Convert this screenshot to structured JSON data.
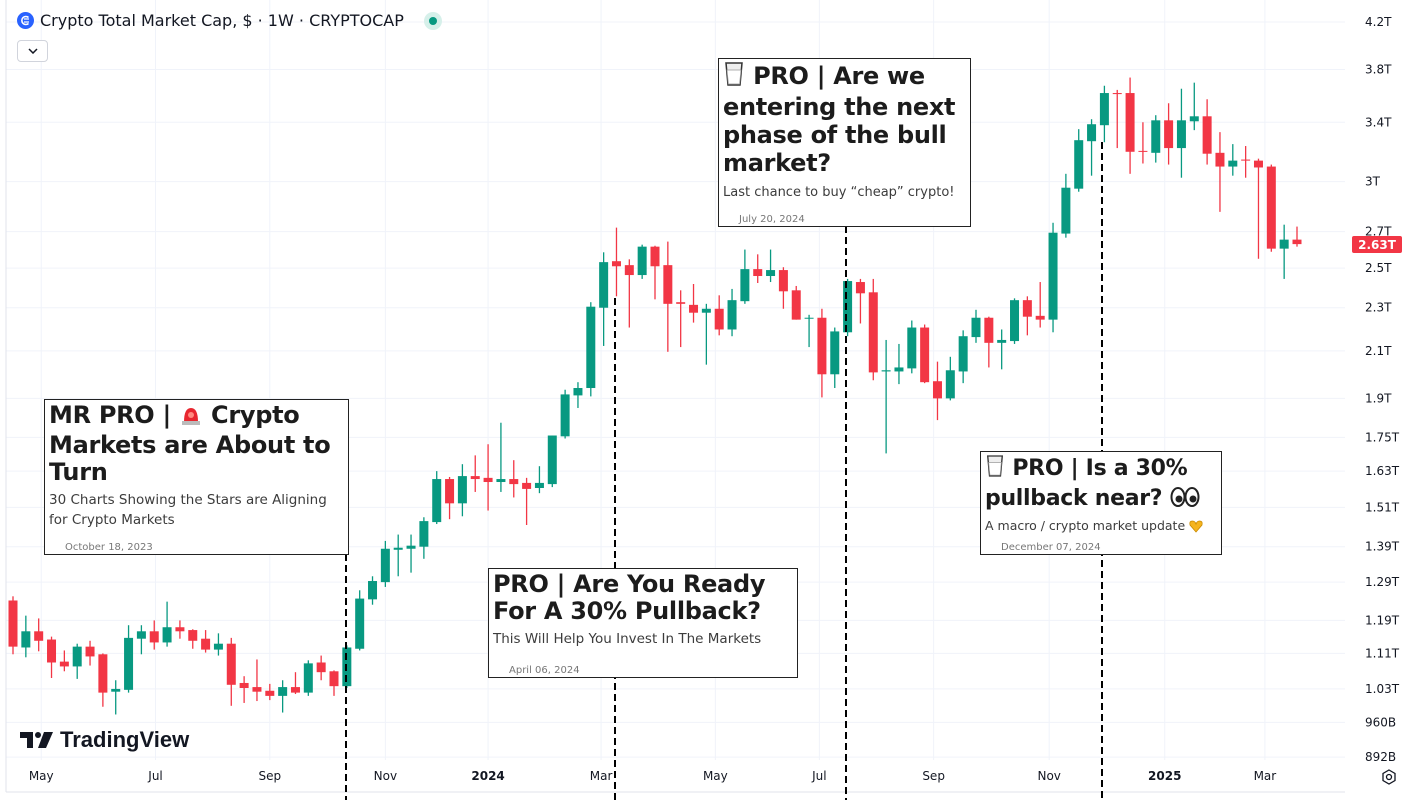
{
  "header": {
    "title": "Crypto Total Market Cap, $ · 1W · CRYPTOCAP",
    "symbol_icon": "cryptocap-icon",
    "status_icon": "market-open-dot",
    "collapse_icon": "chevron-down-icon"
  },
  "watermark": {
    "text": "TradingView"
  },
  "colors": {
    "up": "#089981",
    "down": "#f23645",
    "grid": "#f0f3fa",
    "axis_text": "#131722"
  },
  "last_price_label": "2.63T",
  "annotations": [
    {
      "title_lines": [
        "MR PRO | ",
        "Crypto",
        "Markets are About to",
        "Turn"
      ],
      "icon": "police-light-icon",
      "subtitle_lines": [
        "30 Charts Showing the Stars are Aligning",
        "for Crypto Markets"
      ],
      "date": "October 18, 2023"
    },
    {
      "title_lines": [
        "PRO | Are You Ready",
        "For A 30% Pullback?"
      ],
      "subtitle_lines": [
        "This Will Help You Invest In The Markets"
      ],
      "date": "April 06, 2024"
    },
    {
      "title_lines": [
        "PRO | Are we",
        "entering the next",
        "phase of the bull",
        "market?"
      ],
      "icon": "milk-glass-icon",
      "subtitle_lines": [
        "Last chance to buy “cheap” crypto!"
      ],
      "date": "July 20, 2024"
    },
    {
      "title_lines": [
        "PRO | Is a 30%",
        "pullback near?"
      ],
      "icon": "milk-glass-icon",
      "icon2": "eyes-icon",
      "icon3": "heart-hands-icon",
      "subtitle_lines": [
        "A macro / crypto market update"
      ],
      "date": "December 07, 2024"
    }
  ],
  "chart_data": {
    "type": "candlestick",
    "title": "Crypto Total Market Cap, $ · 1W · CRYPTOCAP",
    "interval": "1W",
    "x_start": "2023-04-17",
    "y_scale": "log",
    "ylim": [
      0.88,
      4.3
    ],
    "unit": "T",
    "grid": true,
    "y_ticks": [
      {
        "v": 4.2,
        "label": "4.2T"
      },
      {
        "v": 3.8,
        "label": "3.8T"
      },
      {
        "v": 3.4,
        "label": "3.4T"
      },
      {
        "v": 3.0,
        "label": "3T"
      },
      {
        "v": 2.7,
        "label": "2.7T"
      },
      {
        "v": 2.5,
        "label": "2.5T"
      },
      {
        "v": 2.3,
        "label": "2.3T"
      },
      {
        "v": 2.1,
        "label": "2.1T"
      },
      {
        "v": 1.9,
        "label": "1.9T"
      },
      {
        "v": 1.75,
        "label": "1.75T"
      },
      {
        "v": 1.63,
        "label": "1.63T"
      },
      {
        "v": 1.51,
        "label": "1.51T"
      },
      {
        "v": 1.39,
        "label": "1.39T"
      },
      {
        "v": 1.29,
        "label": "1.29T"
      },
      {
        "v": 1.19,
        "label": "1.19T"
      },
      {
        "v": 1.11,
        "label": "1.11T"
      },
      {
        "v": 1.03,
        "label": "1.03T"
      },
      {
        "v": 0.96,
        "label": "960B"
      },
      {
        "v": 0.892,
        "label": "892B"
      }
    ],
    "x_ticks": [
      {
        "week": 2.2,
        "label": "May"
      },
      {
        "week": 11.1,
        "label": "Jul"
      },
      {
        "week": 20.0,
        "label": "Sep"
      },
      {
        "week": 29.0,
        "label": "Nov"
      },
      {
        "week": 37.0,
        "label": "2024",
        "bold": true
      },
      {
        "week": 45.8,
        "label": "Mar"
      },
      {
        "week": 54.7,
        "label": "May"
      },
      {
        "week": 62.8,
        "label": "Jul"
      },
      {
        "week": 71.7,
        "label": "Sep"
      },
      {
        "week": 80.7,
        "label": "Nov"
      },
      {
        "week": 89.7,
        "label": "2025",
        "bold": true
      },
      {
        "week": 97.5,
        "label": "Mar"
      }
    ],
    "ohlc": [
      [
        1.241,
        1.252,
        1.108,
        1.126
      ],
      [
        1.124,
        1.202,
        1.101,
        1.163
      ],
      [
        1.163,
        1.195,
        1.115,
        1.14
      ],
      [
        1.143,
        1.15,
        1.054,
        1.089
      ],
      [
        1.091,
        1.117,
        1.069,
        1.08
      ],
      [
        1.08,
        1.133,
        1.052,
        1.126
      ],
      [
        1.126,
        1.14,
        1.082,
        1.103
      ],
      [
        1.108,
        1.11,
        0.992,
        1.022
      ],
      [
        1.024,
        1.049,
        0.976,
        1.03
      ],
      [
        1.028,
        1.178,
        1.022,
        1.147
      ],
      [
        1.145,
        1.178,
        1.108,
        1.163
      ],
      [
        1.163,
        1.19,
        1.119,
        1.136
      ],
      [
        1.136,
        1.238,
        1.126,
        1.173
      ],
      [
        1.173,
        1.19,
        1.145,
        1.163
      ],
      [
        1.166,
        1.168,
        1.121,
        1.14
      ],
      [
        1.145,
        1.166,
        1.112,
        1.119
      ],
      [
        1.119,
        1.158,
        1.105,
        1.133
      ],
      [
        1.133,
        1.147,
        0.994,
        1.039
      ],
      [
        1.043,
        1.058,
        1.0,
        1.032
      ],
      [
        1.034,
        1.096,
        1.004,
        1.024
      ],
      [
        1.026,
        1.041,
        1.006,
        1.015
      ],
      [
        1.015,
        1.049,
        0.98,
        1.034
      ],
      [
        1.034,
        1.067,
        1.019,
        1.022
      ],
      [
        1.022,
        1.094,
        1.015,
        1.087
      ],
      [
        1.089,
        1.105,
        1.049,
        1.067
      ],
      [
        1.069,
        1.071,
        1.015,
        1.036
      ],
      [
        1.036,
        1.129,
        1.032,
        1.124
      ],
      [
        1.121,
        1.268,
        1.117,
        1.246
      ],
      [
        1.244,
        1.306,
        1.23,
        1.293
      ],
      [
        1.29,
        1.407,
        1.277,
        1.384
      ],
      [
        1.381,
        1.426,
        1.306,
        1.387
      ],
      [
        1.384,
        1.426,
        1.316,
        1.393
      ],
      [
        1.39,
        1.479,
        1.355,
        1.467
      ],
      [
        1.464,
        1.63,
        1.458,
        1.603
      ],
      [
        1.603,
        1.61,
        1.473,
        1.523
      ],
      [
        1.523,
        1.654,
        1.482,
        1.613
      ],
      [
        1.613,
        1.685,
        1.56,
        1.603
      ],
      [
        1.607,
        1.725,
        1.5,
        1.593
      ],
      [
        1.593,
        1.805,
        1.56,
        1.603
      ],
      [
        1.603,
        1.668,
        1.542,
        1.586
      ],
      [
        1.59,
        1.607,
        1.455,
        1.57
      ],
      [
        1.573,
        1.647,
        1.556,
        1.59
      ],
      [
        1.586,
        1.757,
        1.576,
        1.757
      ],
      [
        1.754,
        1.935,
        1.746,
        1.916
      ],
      [
        1.912,
        1.966,
        1.862,
        1.942
      ],
      [
        1.942,
        2.327,
        1.908,
        2.305
      ],
      [
        2.3,
        2.585,
        2.122,
        2.532
      ],
      [
        2.537,
        2.723,
        2.356,
        2.51
      ],
      [
        2.516,
        2.547,
        2.206,
        2.464
      ],
      [
        2.464,
        2.627,
        2.444,
        2.616
      ],
      [
        2.616,
        2.621,
        2.341,
        2.51
      ],
      [
        2.516,
        2.644,
        2.096,
        2.319
      ],
      [
        2.327,
        2.386,
        2.117,
        2.319
      ],
      [
        2.314,
        2.418,
        2.229,
        2.276
      ],
      [
        2.276,
        2.319,
        2.04,
        2.295
      ],
      [
        2.295,
        2.361,
        2.17,
        2.197
      ],
      [
        2.197,
        2.393,
        2.166,
        2.337
      ],
      [
        2.332,
        2.6,
        2.319,
        2.495
      ],
      [
        2.495,
        2.574,
        2.423,
        2.459
      ],
      [
        2.459,
        2.6,
        2.428,
        2.49
      ],
      [
        2.49,
        2.505,
        2.295,
        2.381
      ],
      [
        2.386,
        2.408,
        2.243,
        2.243
      ],
      [
        2.248,
        2.266,
        2.117,
        2.252
      ],
      [
        2.252,
        2.295,
        1.904,
        1.999
      ],
      [
        1.999,
        2.206,
        1.942,
        2.188
      ],
      [
        2.184,
        2.444,
        2.166,
        2.433
      ],
      [
        2.428,
        2.444,
        2.225,
        2.371
      ],
      [
        2.376,
        2.444,
        1.974,
        2.007
      ],
      [
        2.011,
        2.149,
        1.692,
        2.016
      ],
      [
        2.011,
        2.131,
        1.958,
        2.028
      ],
      [
        2.024,
        2.239,
        2.003,
        2.206
      ],
      [
        2.206,
        2.22,
        1.962,
        1.966
      ],
      [
        1.97,
        2.053,
        1.815,
        1.9
      ],
      [
        1.9,
        2.074,
        1.892,
        2.016
      ],
      [
        2.011,
        2.193,
        1.962,
        2.166
      ],
      [
        2.162,
        2.29,
        2.136,
        2.252
      ],
      [
        2.252,
        2.257,
        2.028,
        2.136
      ],
      [
        2.136,
        2.197,
        2.02,
        2.149
      ],
      [
        2.144,
        2.346,
        2.131,
        2.337
      ],
      [
        2.337,
        2.356,
        2.17,
        2.257
      ],
      [
        2.261,
        2.428,
        2.206,
        2.243
      ],
      [
        2.243,
        2.751,
        2.184,
        2.694
      ],
      [
        2.689,
        3.05,
        2.666,
        2.962
      ],
      [
        2.956,
        3.351,
        2.937,
        3.274
      ],
      [
        3.267,
        3.422,
        3.038,
        3.386
      ],
      [
        3.379,
        3.672,
        3.26,
        3.616
      ],
      [
        3.616,
        3.64,
        3.22,
        3.608
      ],
      [
        3.616,
        3.736,
        3.05,
        3.195
      ],
      [
        3.201,
        3.4,
        3.117,
        3.195
      ],
      [
        3.188,
        3.451,
        3.123,
        3.414
      ],
      [
        3.414,
        3.539,
        3.11,
        3.22
      ],
      [
        3.22,
        3.649,
        3.025,
        3.414
      ],
      [
        3.407,
        3.696,
        3.344,
        3.443
      ],
      [
        3.443,
        3.569,
        3.11,
        3.182
      ],
      [
        3.188,
        3.33,
        2.815,
        3.097
      ],
      [
        3.097,
        3.247,
        3.038,
        3.136
      ],
      [
        3.143,
        3.234,
        3.025,
        3.136
      ],
      [
        3.136,
        3.149,
        2.55,
        3.091
      ],
      [
        3.097,
        3.11,
        2.588,
        2.605
      ],
      [
        2.605,
        2.74,
        2.444,
        2.655
      ],
      [
        2.655,
        2.729,
        2.616,
        2.63
      ]
    ],
    "last_price": 2.63
  }
}
